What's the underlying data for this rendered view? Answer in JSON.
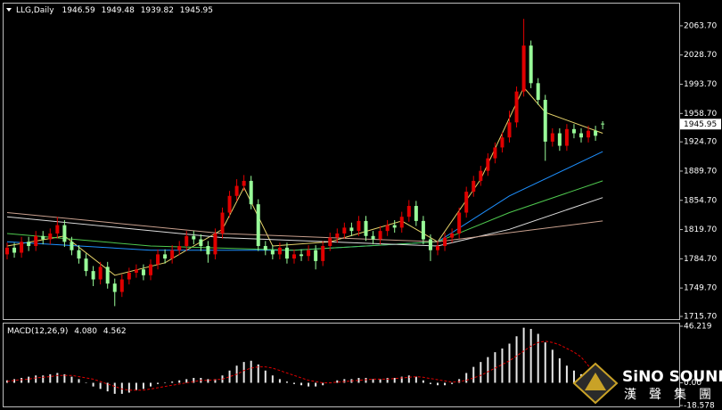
{
  "chart_data": [
    {
      "type": "candlestick",
      "title": "LLG,Daily",
      "open": [
        1790,
        1798,
        1792,
        1805,
        1800,
        1812,
        1808,
        1815,
        1825,
        1805,
        1795,
        1785,
        1770,
        1760,
        1775,
        1755,
        1745,
        1760,
        1768,
        1772,
        1765,
        1778,
        1790,
        1785,
        1795,
        1800,
        1812,
        1808,
        1800,
        1790,
        1815,
        1840,
        1860,
        1872,
        1878,
        1850,
        1800,
        1795,
        1790,
        1798,
        1785,
        1790,
        1788,
        1795,
        1782,
        1800,
        1810,
        1815,
        1822,
        1818,
        1830,
        1812,
        1808,
        1818,
        1825,
        1822,
        1835,
        1848,
        1830,
        1808,
        1795,
        1800,
        1810,
        1815,
        1840,
        1865,
        1878,
        1890,
        1905,
        1918,
        1930,
        1948,
        1985,
        2040,
        1995,
        1975,
        1925,
        1935,
        1920,
        1940,
        1935,
        1930,
        1938,
        1946.59
      ],
      "high": [
        1804,
        1804,
        1811,
        1811,
        1818,
        1818,
        1821,
        1835,
        1831,
        1811,
        1801,
        1791,
        1776,
        1781,
        1781,
        1761,
        1766,
        1774,
        1778,
        1778,
        1784,
        1796,
        1796,
        1801,
        1806,
        1818,
        1818,
        1814,
        1806,
        1821,
        1846,
        1866,
        1880,
        1885,
        1884,
        1856,
        1806,
        1801,
        1804,
        1804,
        1796,
        1796,
        1801,
        1801,
        1806,
        1816,
        1821,
        1828,
        1828,
        1836,
        1836,
        1818,
        1824,
        1831,
        1831,
        1841,
        1855,
        1854,
        1836,
        1814,
        1806,
        1816,
        1821,
        1846,
        1871,
        1884,
        1896,
        1911,
        1924,
        1936,
        1962,
        1991,
        2072,
        2046,
        2001,
        1981,
        1941,
        1941,
        1946,
        1946,
        1941,
        1944,
        1944,
        1949.48
      ],
      "low": [
        1784,
        1786,
        1786,
        1794,
        1794,
        1802,
        1802,
        1809,
        1799,
        1789,
        1779,
        1764,
        1752,
        1754,
        1749,
        1728,
        1739,
        1754,
        1762,
        1759,
        1759,
        1772,
        1779,
        1779,
        1789,
        1794,
        1802,
        1794,
        1780,
        1784,
        1809,
        1834,
        1854,
        1866,
        1844,
        1794,
        1789,
        1784,
        1784,
        1779,
        1779,
        1782,
        1782,
        1772,
        1776,
        1794,
        1804,
        1809,
        1812,
        1812,
        1806,
        1802,
        1802,
        1812,
        1816,
        1816,
        1829,
        1824,
        1802,
        1782,
        1789,
        1794,
        1804,
        1809,
        1834,
        1859,
        1872,
        1884,
        1899,
        1912,
        1924,
        1942,
        1979,
        1989,
        1969,
        1902,
        1919,
        1914,
        1914,
        1929,
        1924,
        1924,
        1926,
        1939.82
      ],
      "close": [
        1798,
        1792,
        1805,
        1800,
        1812,
        1808,
        1815,
        1825,
        1805,
        1795,
        1785,
        1770,
        1760,
        1775,
        1755,
        1745,
        1760,
        1768,
        1772,
        1765,
        1778,
        1790,
        1785,
        1795,
        1800,
        1812,
        1808,
        1800,
        1790,
        1815,
        1840,
        1860,
        1872,
        1878,
        1850,
        1800,
        1795,
        1790,
        1798,
        1785,
        1790,
        1788,
        1795,
        1782,
        1800,
        1810,
        1815,
        1822,
        1818,
        1830,
        1812,
        1808,
        1818,
        1825,
        1822,
        1835,
        1848,
        1830,
        1808,
        1795,
        1800,
        1810,
        1815,
        1840,
        1865,
        1878,
        1890,
        1905,
        1918,
        1930,
        1948,
        1985,
        2040,
        1995,
        1975,
        1925,
        1935,
        1920,
        1940,
        1935,
        1930,
        1938,
        1932,
        1945.95
      ],
      "up_color": "#e00000",
      "down_color": "#98fb98",
      "overlays": [
        {
          "color": "#e6d36a",
          "x": [
            0,
            8,
            15,
            22,
            30,
            33,
            37,
            45,
            55,
            60,
            66,
            72,
            75,
            83
          ],
          "values": [
            1800,
            1812,
            1765,
            1780,
            1820,
            1870,
            1800,
            1805,
            1830,
            1805,
            1880,
            1990,
            1960,
            1935
          ]
        },
        {
          "color": "#1e90ff",
          "x": [
            0,
            20,
            40,
            60,
            70,
            83
          ],
          "values": [
            1805,
            1795,
            1795,
            1805,
            1860,
            1913
          ]
        },
        {
          "color": "#4fc94f",
          "x": [
            0,
            20,
            40,
            60,
            70,
            83
          ],
          "values": [
            1815,
            1800,
            1795,
            1805,
            1840,
            1878
          ]
        },
        {
          "color": "#dcdcdc",
          "x": [
            0,
            30,
            60,
            70,
            83
          ],
          "values": [
            1835,
            1810,
            1800,
            1820,
            1858
          ]
        },
        {
          "color": "#c9a08e",
          "x": [
            0,
            30,
            60,
            83
          ],
          "values": [
            1840,
            1815,
            1805,
            1830
          ]
        }
      ],
      "ylim": [
        1712.5,
        2090.3
      ],
      "yticks": [
        {
          "value": 2063.7,
          "label": "2063.70"
        },
        {
          "value": 2028.7,
          "label": "2028.70"
        },
        {
          "value": 1993.7,
          "label": "1993.70"
        },
        {
          "value": 1958.7,
          "label": "1958.70"
        },
        {
          "value": 1924.7,
          "label": "1924.70"
        },
        {
          "value": 1889.7,
          "label": "1889.70"
        },
        {
          "value": 1854.7,
          "label": "1854.70"
        },
        {
          "value": 1819.7,
          "label": "1819.70"
        },
        {
          "value": 1784.7,
          "label": "1784.70"
        },
        {
          "value": 1749.7,
          "label": "1749.70"
        },
        {
          "value": 1715.7,
          "label": "1715.70"
        }
      ],
      "current_price": 1945.95
    },
    {
      "type": "macd",
      "title": "MACD(12,26,9)",
      "histogram": [
        2,
        3,
        4,
        5,
        6,
        6,
        7,
        8,
        7,
        5,
        3,
        0,
        -3,
        -5,
        -7,
        -9,
        -9,
        -8,
        -6,
        -5,
        -3,
        -1,
        0,
        1,
        2,
        3,
        4,
        4,
        3,
        3,
        6,
        10,
        14,
        17,
        18,
        15,
        10,
        6,
        3,
        1,
        -1,
        -2,
        -3,
        -3,
        -2,
        0,
        2,
        3,
        3,
        4,
        4,
        3,
        3,
        4,
        4,
        5,
        6,
        5,
        2,
        -1,
        -2,
        -2,
        -1,
        3,
        8,
        13,
        17,
        21,
        25,
        28,
        32,
        38,
        45,
        44,
        40,
        33,
        27,
        20,
        14,
        10,
        7,
        5,
        4.5,
        4.08
      ],
      "signal": [
        1,
        2,
        2.5,
        3,
        4,
        4.5,
        5,
        6,
        6,
        6,
        5,
        4,
        3,
        1,
        -1,
        -3,
        -5,
        -6,
        -6,
        -6,
        -5,
        -4,
        -3,
        -2,
        -1,
        0,
        1,
        2,
        2,
        2.5,
        3,
        5,
        7,
        10,
        12,
        13,
        13,
        12,
        10,
        8,
        6,
        4,
        2,
        1,
        0,
        0,
        0.5,
        1,
        1.5,
        2,
        2.5,
        3,
        3,
        3,
        3.5,
        4,
        4.5,
        5,
        4.5,
        3.5,
        2.5,
        1.5,
        0.5,
        1,
        2,
        4,
        6,
        9,
        12,
        15,
        18,
        22,
        26,
        30,
        33,
        34,
        33,
        31,
        28,
        25,
        21,
        14,
        8,
        4.562
      ],
      "readout": [
        {
          "value": 4.08,
          "label": "4.080"
        },
        {
          "value": 4.562,
          "label": "4.562"
        }
      ],
      "histogram_color": "#e8e8e8",
      "signal_color": "#e00000",
      "ylim": [
        -18.578,
        46.219
      ],
      "yticks": [
        46.219,
        {
          "value": 0,
          "label": "0.00"
        },
        -18.578
      ]
    }
  ],
  "logo": {
    "name": "SiNO SOUND",
    "chinese": [
      "漢",
      "聲",
      "集",
      "團"
    ]
  }
}
